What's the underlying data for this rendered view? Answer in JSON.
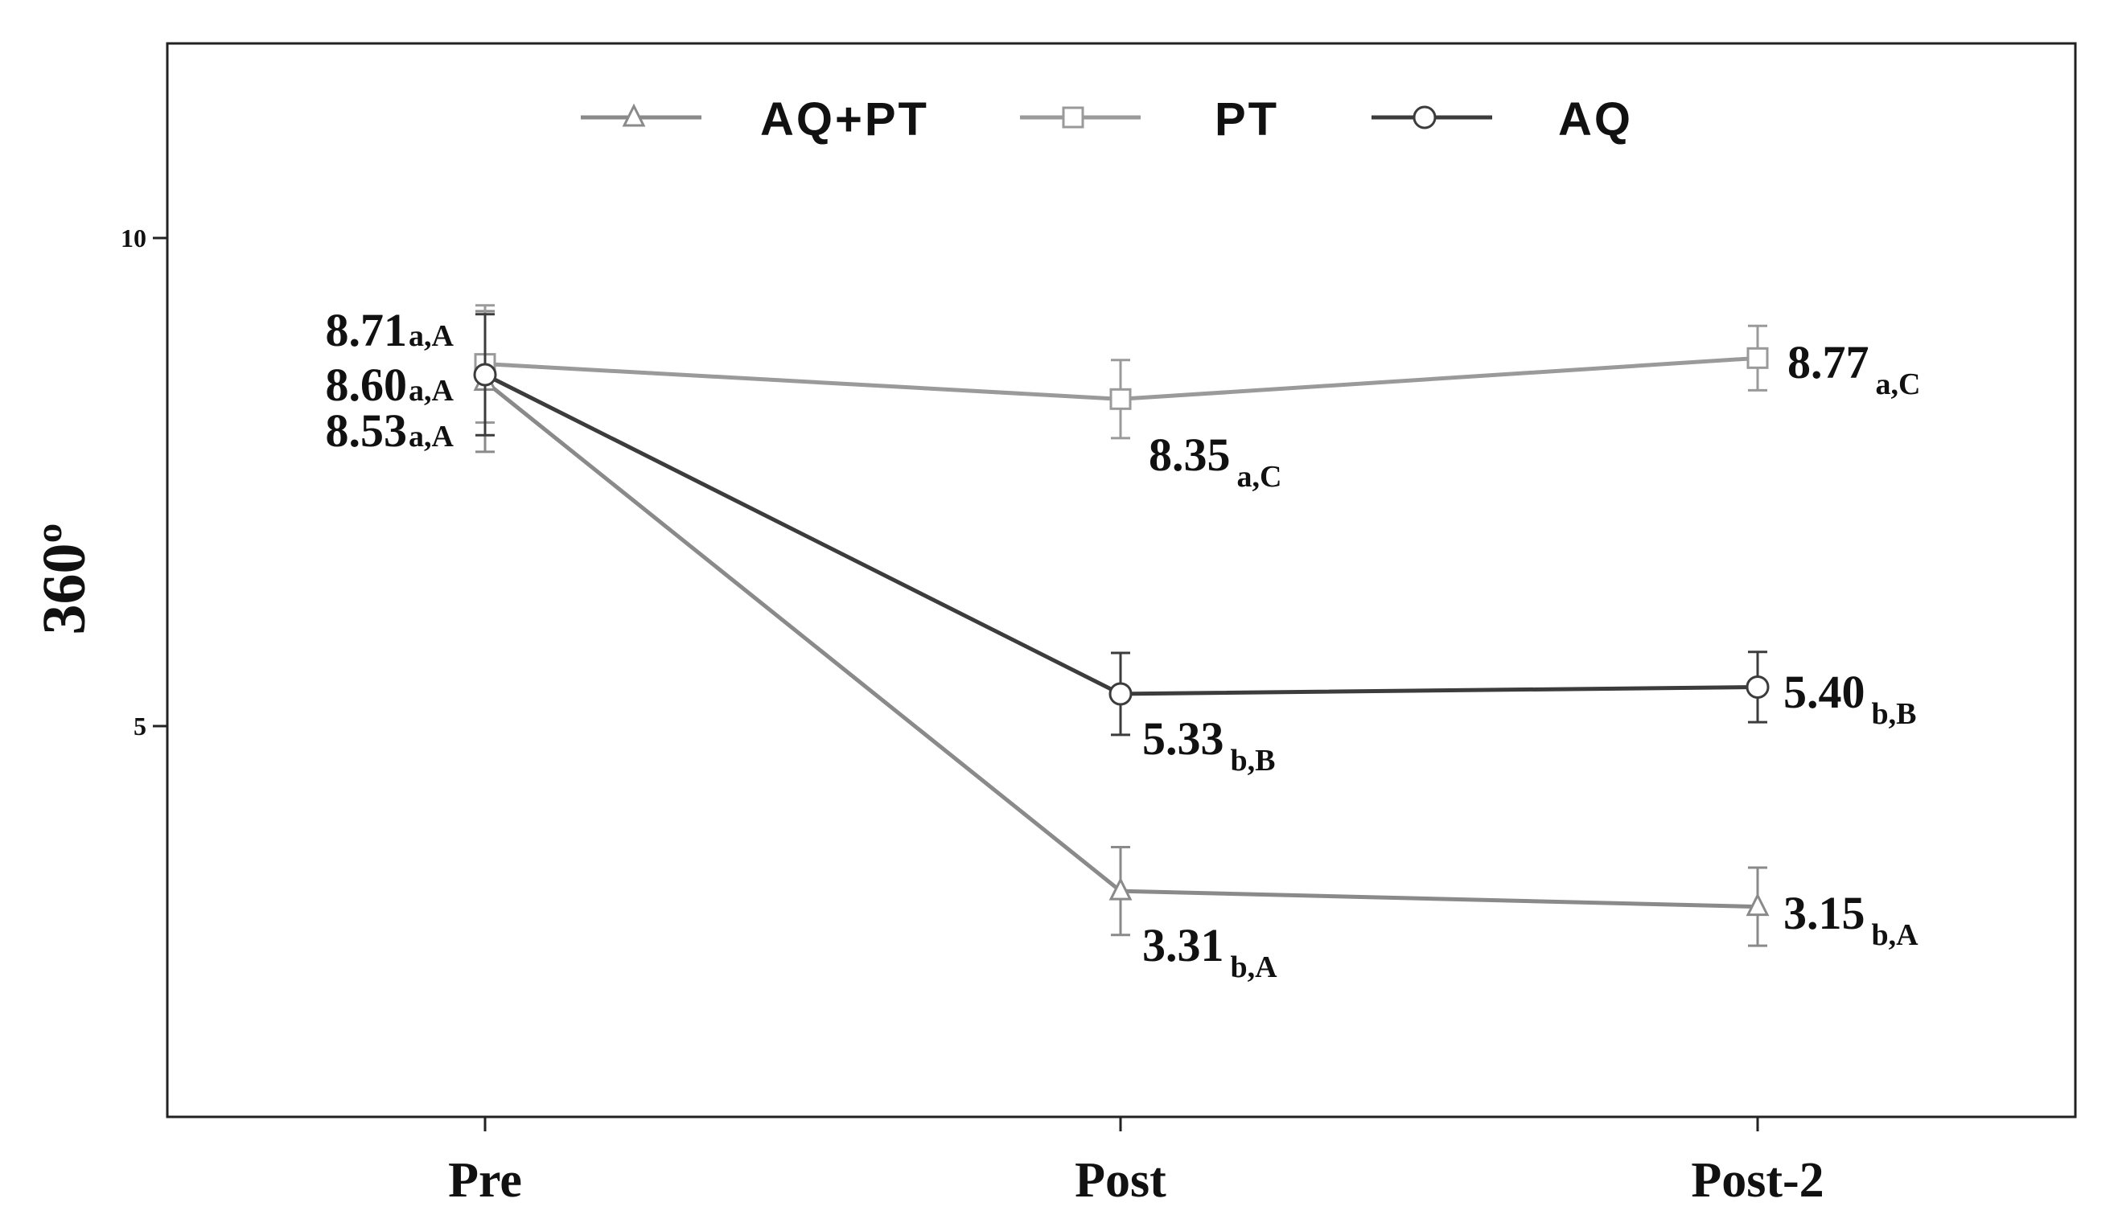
{
  "chart_data": {
    "type": "line",
    "title": "",
    "xlabel": "",
    "ylabel": "360º",
    "categories": [
      "Pre",
      "Post",
      "Post-2"
    ],
    "yticks": [
      "5",
      "10"
    ],
    "ylim": [
      1,
      12
    ],
    "legend_position": "top",
    "series": [
      {
        "name": "AQ+PT",
        "marker": "triangle",
        "color": "#8a8a8a",
        "values": [
          8.53,
          3.31,
          3.15
        ],
        "errors": [
          0.72,
          0.45,
          0.4
        ],
        "labels": [
          {
            "value": "8.53",
            "sub": "a,A"
          },
          {
            "value": "3.31",
            "sub": "b,A"
          },
          {
            "value": "3.15",
            "sub": "b,A"
          }
        ]
      },
      {
        "name": "PT",
        "marker": "square",
        "color": "#9a9a9a",
        "values": [
          8.71,
          8.35,
          8.77
        ],
        "errors": [
          0.6,
          0.4,
          0.33
        ],
        "labels": [
          {
            "value": "8.71",
            "sub": "a,A"
          },
          {
            "value": "8.35",
            "sub": "a,C"
          },
          {
            "value": "8.77",
            "sub": "a,C"
          }
        ]
      },
      {
        "name": "AQ",
        "marker": "circle",
        "color": "#3c3c3c",
        "values": [
          8.6,
          5.33,
          5.4
        ],
        "errors": [
          0.62,
          0.42,
          0.36
        ],
        "labels": [
          {
            "value": "8.60",
            "sub": "a,A"
          },
          {
            "value": "5.33",
            "sub": "b,B"
          },
          {
            "value": "5.40",
            "sub": "b,B"
          }
        ]
      }
    ]
  }
}
